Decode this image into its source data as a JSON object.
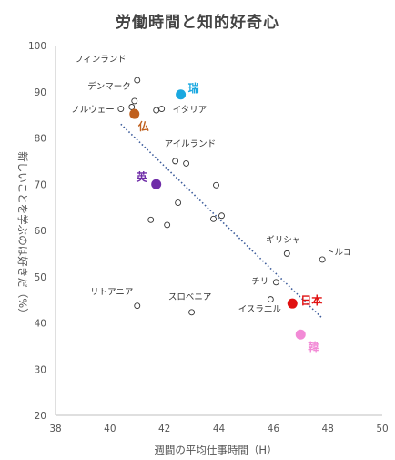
{
  "chart_data": {
    "type": "scatter",
    "title": "労働時間と知的好奇心",
    "xlabel": "週間の平均仕事時間（H）",
    "ylabel": "新しいことを学ぶのは好きだ（%）",
    "xlim": [
      38,
      50
    ],
    "ylim": [
      20,
      100
    ],
    "xticks": [
      38,
      40,
      42,
      44,
      46,
      48,
      50
    ],
    "yticks": [
      20,
      30,
      40,
      50,
      60,
      70,
      80,
      90,
      100
    ],
    "grid": false,
    "points": [
      {
        "x": 41.0,
        "y": 92.5,
        "label": "フィンランド"
      },
      {
        "x": 40.9,
        "y": 88.0,
        "label": "デンマーク"
      },
      {
        "x": 40.4,
        "y": 86.3,
        "label": "ノルウェー"
      },
      {
        "x": 40.8,
        "y": 86.7,
        "label": ""
      },
      {
        "x": 41.7,
        "y": 86.0,
        "label": ""
      },
      {
        "x": 41.9,
        "y": 86.3,
        "label": "イタリア"
      },
      {
        "x": 42.4,
        "y": 75.0,
        "label": "アイルランド"
      },
      {
        "x": 42.8,
        "y": 74.5,
        "label": ""
      },
      {
        "x": 43.9,
        "y": 69.8,
        "label": ""
      },
      {
        "x": 42.5,
        "y": 66.0,
        "label": ""
      },
      {
        "x": 41.5,
        "y": 62.3,
        "label": ""
      },
      {
        "x": 42.1,
        "y": 61.2,
        "label": ""
      },
      {
        "x": 43.8,
        "y": 62.5,
        "label": ""
      },
      {
        "x": 44.1,
        "y": 63.2,
        "label": ""
      },
      {
        "x": 46.5,
        "y": 55.0,
        "label": "ギリシャ"
      },
      {
        "x": 47.8,
        "y": 53.7,
        "label": "トルコ"
      },
      {
        "x": 46.1,
        "y": 48.8,
        "label": "チリ"
      },
      {
        "x": 45.9,
        "y": 45.1,
        "label": "イスラエル"
      },
      {
        "x": 41.0,
        "y": 43.7,
        "label": "リトアニア"
      },
      {
        "x": 43.0,
        "y": 42.3,
        "label": "スロベニア"
      }
    ],
    "highlights": [
      {
        "x": 42.6,
        "y": 89.4,
        "label": "瑞",
        "color": "#1aa8e0"
      },
      {
        "x": 40.9,
        "y": 85.2,
        "label": "仏",
        "color": "#c0601e"
      },
      {
        "x": 41.7,
        "y": 70.0,
        "label": "英",
        "color": "#6f2da8"
      },
      {
        "x": 46.7,
        "y": 44.2,
        "label": "日本",
        "color": "#e01010"
      },
      {
        "x": 47.0,
        "y": 37.5,
        "label": "韓",
        "color": "#f28ad6"
      }
    ],
    "trendline": {
      "x": [
        40.4,
        47.8
      ],
      "y": [
        83.0,
        41.0
      ],
      "color": "#3a5a9a",
      "style": "dotted"
    }
  }
}
